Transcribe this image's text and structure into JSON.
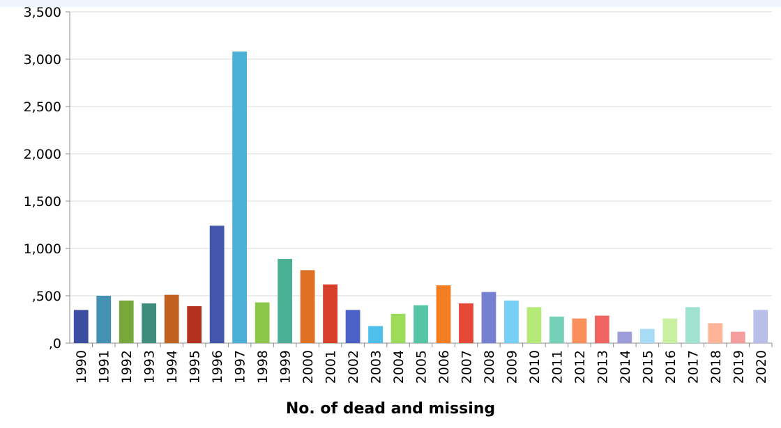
{
  "chart_data": {
    "type": "bar",
    "title": "",
    "xlabel": "No. of dead and missing",
    "ylabel": "",
    "ylim": [
      0,
      3500
    ],
    "yticks": [
      0,
      500,
      1000,
      1500,
      2000,
      2500,
      3000,
      3500
    ],
    "ytick_labels": [
      ",0",
      ",500",
      "1,000",
      "1,500",
      "2,000",
      "2,500",
      "3,000",
      "3,500"
    ],
    "grid": "horizontal",
    "legend": "none",
    "categories": [
      "1990",
      "1991",
      "1992",
      "1993",
      "1994",
      "1995",
      "1996",
      "1997",
      "1998",
      "1999",
      "2000",
      "2001",
      "2002",
      "2003",
      "2004",
      "2005",
      "2006",
      "2007",
      "2008",
      "2009",
      "2010",
      "2011",
      "2012",
      "2013",
      "2014",
      "2015",
      "2016",
      "2017",
      "2018",
      "2019",
      "2020"
    ],
    "values": [
      350,
      500,
      450,
      420,
      510,
      390,
      1240,
      3080,
      430,
      890,
      770,
      620,
      350,
      180,
      310,
      400,
      610,
      420,
      540,
      450,
      380,
      280,
      260,
      290,
      120,
      150,
      260,
      380,
      210,
      120,
      350
    ],
    "colors": [
      "#3b4ea1",
      "#4392b3",
      "#78a83c",
      "#3e8c7c",
      "#c0611f",
      "#b2311f",
      "#4256ad",
      "#4bb0d6",
      "#8dc74a",
      "#4bb095",
      "#de7124",
      "#d8402c",
      "#4a62c7",
      "#4cbfea",
      "#9ddc58",
      "#54c6a6",
      "#f57e22",
      "#e64837",
      "#7580d1",
      "#76d0f5",
      "#b6ea78",
      "#74d1b7",
      "#fb8f5c",
      "#f06461",
      "#9d9ed9",
      "#a7dcf6",
      "#c8f0a0",
      "#9fe2cf",
      "#fcb398",
      "#f59d9d",
      "#b9bfe8"
    ]
  }
}
